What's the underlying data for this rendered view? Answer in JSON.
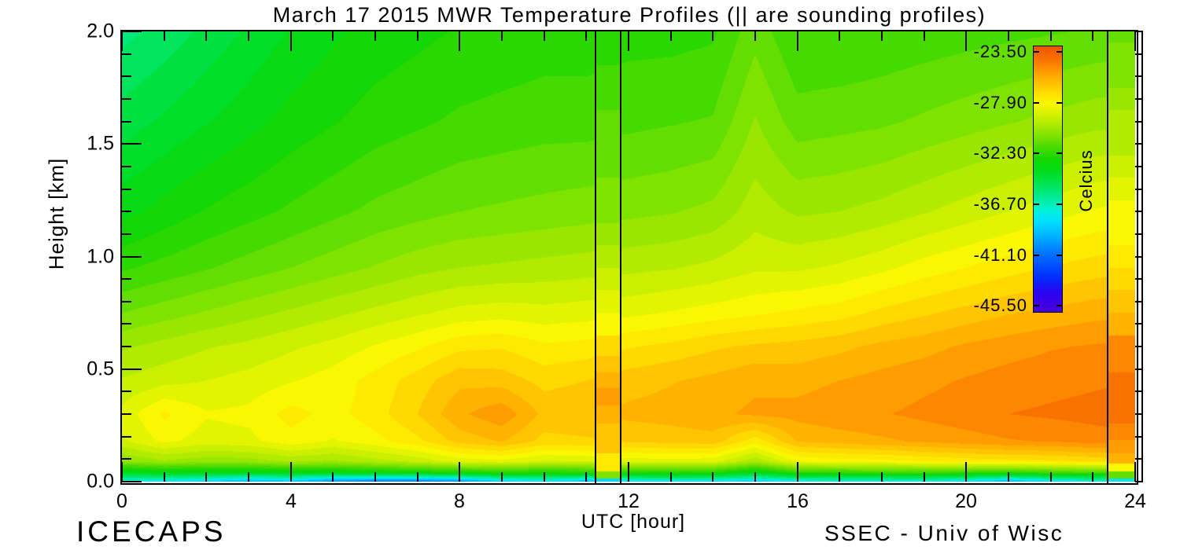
{
  "title": "March 17 2015 MWR Temperature Profiles (|| are sounding profiles)",
  "footer": {
    "left": "ICECAPS",
    "right": "SSEC - Univ of Wisc"
  },
  "axes": {
    "x": {
      "label": "UTC [hour]",
      "range": [
        0,
        24
      ],
      "minor_step": 1,
      "major_ticks": [
        0,
        4,
        8,
        12,
        16,
        20,
        24
      ],
      "tick_labels": [
        "0",
        "4",
        "8",
        "12",
        "16",
        "20",
        "24"
      ]
    },
    "y": {
      "label": "Height [km]",
      "range": [
        0,
        2
      ],
      "minor_step": 0.1,
      "major_ticks": [
        0,
        0.5,
        1,
        1.5,
        2
      ],
      "tick_labels": [
        "0.0",
        "0.5",
        "1.0",
        "1.5",
        "2.0"
      ]
    }
  },
  "colorbar": {
    "label": "Celcius",
    "values": [
      -23.5,
      -27.9,
      -32.3,
      -36.7,
      -41.1,
      -45.5
    ],
    "labels": [
      "-23.50",
      "-27.90",
      "-32.30",
      "-36.70",
      "-41.10",
      "-45.50"
    ],
    "top_value": -22.95,
    "bottom_value": -46.1
  },
  "colormap": [
    [
      -46.2,
      "#4A00D8"
    ],
    [
      -44.5,
      "#2B00F0"
    ],
    [
      -43.0,
      "#0030FF"
    ],
    [
      -41.1,
      "#0070FF"
    ],
    [
      -39.5,
      "#00B0FF"
    ],
    [
      -38.2,
      "#00E0FF"
    ],
    [
      -37.2,
      "#00F2D8"
    ],
    [
      -36.2,
      "#00EC9A"
    ],
    [
      -35.0,
      "#00E455"
    ],
    [
      -33.8,
      "#00DC1C"
    ],
    [
      -32.8,
      "#14D600"
    ],
    [
      -31.8,
      "#46DA00"
    ],
    [
      -30.8,
      "#7CE200"
    ],
    [
      -29.8,
      "#AAEA00"
    ],
    [
      -28.8,
      "#D6F200"
    ],
    [
      -27.9,
      "#FCF800"
    ],
    [
      -27.2,
      "#FFE400"
    ],
    [
      -26.4,
      "#FFC800"
    ],
    [
      -25.6,
      "#FFAC00"
    ],
    [
      -24.9,
      "#FF9000"
    ],
    [
      -24.2,
      "#FA7400"
    ],
    [
      -23.4,
      "#F25E02"
    ],
    [
      -22.9,
      "#EE5500"
    ]
  ],
  "contour_interval_c": 0.55,
  "contour_min_c": -46.4,
  "sounding_line_hours": [
    11.22,
    11.82,
    23.35
  ],
  "chart_data": {
    "type": "heatmap",
    "title": "March 17 2015 MWR Temperature Profiles (|| are sounding profiles)",
    "xlabel": "UTC [hour]",
    "ylabel": "Height [km]",
    "units": "Celcius",
    "x_hours": [
      0,
      1,
      2,
      3,
      4,
      5,
      6,
      7,
      8,
      9,
      10,
      11,
      12,
      13,
      14,
      15,
      16,
      17,
      18,
      19,
      20,
      21,
      22,
      23,
      24
    ],
    "heights_km": [
      2.0,
      1.6,
      1.2,
      0.95,
      0.75,
      0.6,
      0.45,
      0.3,
      0.18,
      0.09,
      0.04,
      0.0
    ],
    "temperature_c": [
      [
        -35.6,
        -35.2,
        -34.7,
        -34.2,
        -33.7,
        -33.3,
        -33.0,
        -32.8,
        -32.6,
        -32.5,
        -32.4,
        -32.4,
        -32.3,
        -32.3,
        -32.2,
        -31.2,
        -32.1,
        -32.1,
        -32.0,
        -31.9,
        -31.8,
        -31.7,
        -31.6,
        -31.5,
        -31.4
      ],
      [
        -34.6,
        -34.2,
        -33.8,
        -33.4,
        -33.0,
        -32.7,
        -32.4,
        -32.2,
        -32.0,
        -31.9,
        -31.8,
        -31.8,
        -31.7,
        -31.6,
        -31.5,
        -30.4,
        -31.3,
        -31.2,
        -31.1,
        -30.9,
        -30.7,
        -30.5,
        -30.3,
        -30.1,
        -30.0
      ],
      [
        -33.4,
        -33.0,
        -32.6,
        -32.3,
        -32.0,
        -31.7,
        -31.4,
        -31.2,
        -31.0,
        -30.9,
        -30.8,
        -30.7,
        -30.6,
        -30.5,
        -30.3,
        -29.6,
        -30.0,
        -29.9,
        -29.7,
        -29.4,
        -29.1,
        -28.8,
        -28.5,
        -28.2,
        -28.0
      ],
      [
        -32.2,
        -31.9,
        -31.6,
        -31.3,
        -31.0,
        -30.7,
        -30.4,
        -30.1,
        -29.9,
        -29.8,
        -29.7,
        -29.6,
        -29.5,
        -29.4,
        -29.2,
        -28.9,
        -28.9,
        -28.7,
        -28.4,
        -28.0,
        -27.7,
        -27.4,
        -27.1,
        -26.9,
        -26.7
      ],
      [
        -31.0,
        -30.7,
        -30.4,
        -30.1,
        -29.8,
        -29.5,
        -29.2,
        -28.9,
        -28.6,
        -28.5,
        -28.6,
        -28.5,
        -28.4,
        -28.2,
        -28.0,
        -27.8,
        -27.6,
        -27.4,
        -27.0,
        -26.7,
        -26.4,
        -26.1,
        -25.9,
        -25.7,
        -25.6
      ],
      [
        -30.0,
        -29.7,
        -29.4,
        -29.2,
        -28.9,
        -28.6,
        -28.2,
        -27.8,
        -27.3,
        -27.2,
        -27.6,
        -27.5,
        -27.2,
        -27.0,
        -26.7,
        -26.5,
        -26.4,
        -26.2,
        -25.9,
        -25.7,
        -25.4,
        -25.2,
        -25.0,
        -24.9,
        -24.8
      ],
      [
        -29.3,
        -29.0,
        -28.8,
        -28.6,
        -28.3,
        -28.0,
        -27.5,
        -26.9,
        -26.2,
        -26.3,
        -26.8,
        -26.6,
        -26.3,
        -26.1,
        -25.9,
        -25.6,
        -25.7,
        -25.5,
        -25.3,
        -25.1,
        -24.9,
        -24.7,
        -24.6,
        -24.5,
        -24.4
      ],
      [
        -28.6,
        -27.6,
        -28.2,
        -28.1,
        -27.5,
        -27.9,
        -27.4,
        -26.6,
        -25.6,
        -25.1,
        -26.2,
        -26.1,
        -25.9,
        -25.8,
        -25.6,
        -25.4,
        -25.3,
        -25.1,
        -25.0,
        -24.8,
        -24.6,
        -24.4,
        -24.3,
        -24.2,
        -24.1
      ],
      [
        -28.9,
        -28.1,
        -28.5,
        -28.4,
        -27.9,
        -28.3,
        -27.9,
        -27.3,
        -26.4,
        -26.0,
        -26.8,
        -26.7,
        -26.5,
        -26.4,
        -26.3,
        -27.5,
        -26.0,
        -25.8,
        -25.6,
        -25.4,
        -25.2,
        -25.0,
        -24.9,
        -24.7,
        -24.6
      ],
      [
        -30.5,
        -30.0,
        -30.3,
        -30.2,
        -29.8,
        -30.0,
        -29.6,
        -29.2,
        -28.6,
        -28.4,
        -28.9,
        -28.8,
        -28.6,
        -28.5,
        -28.6,
        -29.8,
        -28.2,
        -28.0,
        -27.9,
        -27.7,
        -27.5,
        -27.4,
        -27.3,
        -27.1,
        -27.0
      ],
      [
        -33.8,
        -33.5,
        -33.6,
        -33.7,
        -33.4,
        -33.5,
        -33.2,
        -33.0,
        -32.8,
        -32.6,
        -32.7,
        -32.6,
        -32.5,
        -32.4,
        -32.6,
        -33.6,
        -32.3,
        -32.2,
        -32.1,
        -32.0,
        -32.2,
        -32.4,
        -32.0,
        -31.8,
        -31.9
      ],
      [
        -37.5,
        -37.8,
        -38.5,
        -39.5,
        -38.8,
        -40.5,
        -41.0,
        -41.0,
        -40.5,
        -38.5,
        -38.0,
        -39.2,
        -38.2,
        -37.8,
        -38.0,
        -38.6,
        -37.8,
        -37.5,
        -37.6,
        -37.4,
        -38.0,
        -39.5,
        -38.2,
        -37.6,
        -37.8
      ]
    ],
    "soundings": [
      {
        "start_hour": 11.22,
        "end_hour": 11.82,
        "heights_km": [
          2.0,
          1.9,
          1.8,
          1.7,
          1.6,
          1.5,
          1.4,
          1.3,
          1.2,
          1.1,
          1.0,
          0.9,
          0.8,
          0.7,
          0.6,
          0.52,
          0.45,
          0.38,
          0.3,
          0.22,
          0.15,
          0.1,
          0.06,
          0.03,
          0.0
        ],
        "temps_c": [
          -32.3,
          -32.1,
          -31.9,
          -31.7,
          -31.5,
          -31.3,
          -31.1,
          -30.8,
          -30.5,
          -30.1,
          -29.7,
          -29.2,
          -28.6,
          -27.9,
          -27.1,
          -26.5,
          -25.9,
          -25.2,
          -25.8,
          -26.1,
          -26.4,
          -27.2,
          -27.6,
          -30.5,
          -38.5
        ]
      },
      {
        "start_hour": 23.35,
        "end_hour": 24.0,
        "heights_km": [
          2.0,
          1.9,
          1.8,
          1.7,
          1.6,
          1.5,
          1.4,
          1.3,
          1.2,
          1.1,
          1.0,
          0.9,
          0.8,
          0.7,
          0.6,
          0.52,
          0.45,
          0.38,
          0.3,
          0.22,
          0.15,
          0.1,
          0.06,
          0.03,
          0.0
        ],
        "temps_c": [
          -31.2,
          -30.9,
          -30.6,
          -30.2,
          -29.8,
          -29.4,
          -29.0,
          -28.6,
          -28.2,
          -27.8,
          -27.3,
          -26.8,
          -26.2,
          -25.5,
          -24.9,
          -24.5,
          -24.1,
          -23.9,
          -24.2,
          -24.5,
          -25.0,
          -26.0,
          -27.8,
          -31.0,
          -38.0
        ]
      }
    ]
  }
}
